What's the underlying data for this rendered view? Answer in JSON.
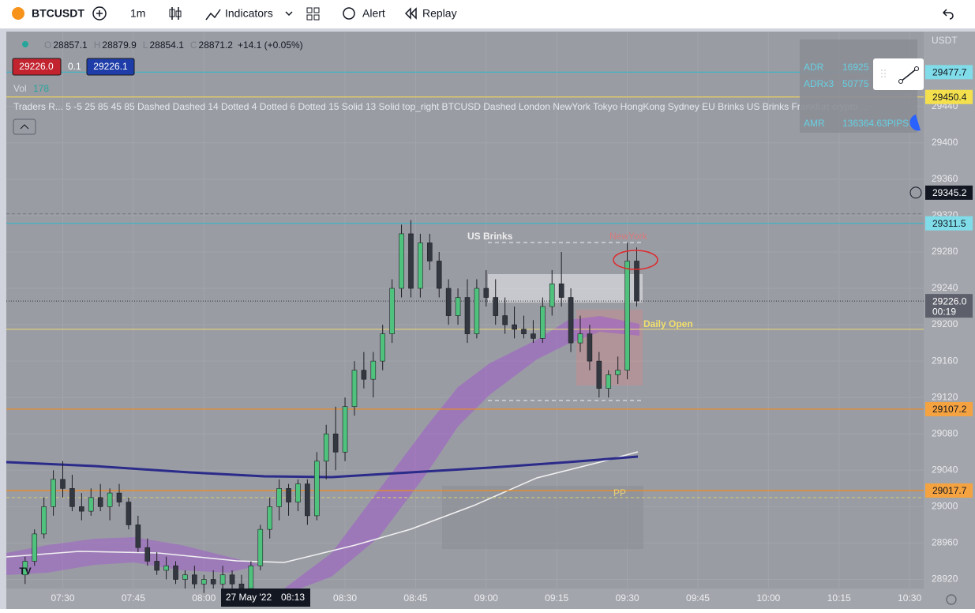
{
  "toolbar": {
    "symbol": "BTCUSDT",
    "interval": "1m",
    "indicators": "Indicators",
    "alert": "Alert",
    "replay": "Replay"
  },
  "legend": {
    "ohlc": [
      {
        "key": "O",
        "value": 28857.1
      },
      {
        "key": "H",
        "value": 28879.9
      },
      {
        "key": "L",
        "value": 28854.1
      },
      {
        "key": "C",
        "value": 28871.2
      }
    ],
    "change": "+14.1 (+0.05%)",
    "sell": "29226.0",
    "spread": "0.1",
    "buy": "29226.1",
    "vol_label": "Vol",
    "vol_value": 178,
    "indicator": "Traders R... 5 -5 25 85 45 85 Dashed Dashed 14 Dotted 4 Dotted 6 Dotted 15 Solid 13 Solid top_right BTCUSD Dashed London NewYork Tokyo HongKong Sydney EU Brinks US Brinks Frankfurt crypto ..."
  },
  "stats_table": {
    "rows": [
      [
        "ADR",
        "16925"
      ],
      [
        "ADRx3",
        "50775"
      ],
      [
        "AMR",
        "136364.63PIPS"
      ]
    ]
  },
  "annotations": {
    "us_brinks": "US Brinks",
    "newyork": "NewYork",
    "daily_open": "Daily Open",
    "pp": "PP"
  },
  "chart": {
    "currency": "USDT",
    "ylim": [
      28910,
      29524
    ],
    "xlim": [
      "07:18",
      "10:33"
    ],
    "yticks": [
      28920,
      28960,
      29000,
      29040,
      29080,
      29120,
      29160,
      29200,
      29240,
      29280,
      29320,
      29360,
      29400,
      29440
    ],
    "xticks": [
      "07:30",
      "07:45",
      "08:00",
      "08:30",
      "08:45",
      "09:00",
      "09:15",
      "09:30",
      "09:45",
      "10:00",
      "10:15",
      "10:30"
    ],
    "crosshair": {
      "date": "27 May '22",
      "time": "08:13"
    },
    "price_labels": [
      {
        "value": 29477.7,
        "bg": "#7fdce8",
        "line": "#37b5c8"
      },
      {
        "value": 29450.4,
        "bg": "#f4e04d",
        "line": "#e8d060"
      },
      {
        "value": 29345.2,
        "bg": "#131722",
        "fg": "#ffffff"
      },
      {
        "value": 29311.5,
        "bg": "#7fdce8",
        "line": "#37b5c8"
      },
      {
        "value": 29226,
        "label": "29226.0",
        "bg": "#5d606b",
        "fg": "#ffffff",
        "timer": "00:19"
      },
      {
        "value": 29107.2,
        "bg": "#f5a340",
        "line": "#f08a1c"
      },
      {
        "value": 29017.7,
        "bg": "#f5a340",
        "line": "#f08a1c"
      }
    ],
    "lines": [
      {
        "value": 29195,
        "color": "#e6d27a"
      },
      {
        "value": 29322,
        "color": "#7b7e87"
      },
      {
        "value": 29010,
        "color": "#c8c27a"
      }
    ],
    "up_color": "#4fc27d",
    "down_color": "#333740",
    "candles": [
      [
        "07:22",
        28925,
        28945,
        28915,
        28940
      ],
      [
        "07:24",
        28940,
        28975,
        28935,
        28970
      ],
      [
        "07:26",
        28970,
        29010,
        28965,
        29000
      ],
      [
        "07:28",
        29000,
        29040,
        28990,
        29030
      ],
      [
        "07:30",
        29030,
        29050,
        29010,
        29020
      ],
      [
        "07:32",
        29020,
        29035,
        28995,
        29000
      ],
      [
        "07:34",
        29000,
        29015,
        28985,
        28995
      ],
      [
        "07:36",
        28995,
        29020,
        28990,
        29010
      ],
      [
        "07:38",
        29010,
        29025,
        28995,
        29000
      ],
      [
        "07:40",
        29000,
        29020,
        28985,
        29015
      ],
      [
        "07:42",
        29015,
        29025,
        29000,
        29005
      ],
      [
        "07:44",
        29005,
        29010,
        28975,
        28980
      ],
      [
        "07:46",
        28980,
        28990,
        28950,
        28955
      ],
      [
        "07:48",
        28955,
        28965,
        28935,
        28940
      ],
      [
        "07:50",
        28940,
        28950,
        28925,
        28930
      ],
      [
        "07:52",
        28930,
        28945,
        28920,
        28935
      ],
      [
        "07:54",
        28935,
        28940,
        28915,
        28920
      ],
      [
        "07:56",
        28920,
        28930,
        28910,
        28925
      ],
      [
        "07:58",
        28925,
        28935,
        28910,
        28915
      ],
      [
        "08:00",
        28915,
        28925,
        28905,
        28920
      ],
      [
        "08:02",
        28920,
        28930,
        28910,
        28915
      ],
      [
        "08:04",
        28915,
        28935,
        28905,
        28925
      ],
      [
        "08:06",
        28925,
        28930,
        28910,
        28915
      ],
      [
        "08:08",
        28915,
        28925,
        28905,
        28910
      ],
      [
        "08:10",
        28910,
        28940,
        28905,
        28935
      ],
      [
        "08:12",
        28935,
        28980,
        28930,
        28975
      ],
      [
        "08:14",
        28975,
        29010,
        28965,
        29000
      ],
      [
        "08:16",
        29000,
        29030,
        28985,
        29020
      ],
      [
        "08:18",
        29020,
        29025,
        28990,
        29005
      ],
      [
        "08:20",
        29005,
        29030,
        28995,
        29025
      ],
      [
        "08:22",
        29025,
        29030,
        28980,
        28990
      ],
      [
        "08:24",
        28990,
        29060,
        28985,
        29050
      ],
      [
        "08:26",
        29050,
        29090,
        29030,
        29080
      ],
      [
        "08:28",
        29080,
        29110,
        29040,
        29060
      ],
      [
        "08:30",
        29060,
        29120,
        29050,
        29110
      ],
      [
        "08:32",
        29110,
        29160,
        29100,
        29150
      ],
      [
        "08:34",
        29150,
        29170,
        29130,
        29140
      ],
      [
        "08:36",
        29140,
        29170,
        29120,
        29160
      ],
      [
        "08:38",
        29160,
        29200,
        29150,
        29190
      ],
      [
        "08:40",
        29190,
        29250,
        29180,
        29240
      ],
      [
        "08:42",
        29240,
        29310,
        29230,
        29300
      ],
      [
        "08:44",
        29300,
        29315,
        29230,
        29240
      ],
      [
        "08:46",
        29240,
        29300,
        29230,
        29290
      ],
      [
        "08:48",
        29290,
        29300,
        29260,
        29270
      ],
      [
        "08:50",
        29270,
        29280,
        29230,
        29240
      ],
      [
        "08:52",
        29240,
        29250,
        29200,
        29210
      ],
      [
        "08:54",
        29210,
        29240,
        29200,
        29230
      ],
      [
        "08:56",
        29230,
        29250,
        29180,
        29190
      ],
      [
        "08:58",
        29190,
        29250,
        29185,
        29240
      ],
      [
        "09:00",
        29240,
        29260,
        29220,
        29230
      ],
      [
        "09:02",
        29230,
        29250,
        29200,
        29210
      ],
      [
        "09:04",
        29210,
        29230,
        29190,
        29200
      ],
      [
        "09:06",
        29200,
        29220,
        29185,
        29195
      ],
      [
        "09:08",
        29195,
        29210,
        29185,
        29190
      ],
      [
        "09:10",
        29190,
        29205,
        29180,
        29185
      ],
      [
        "09:12",
        29185,
        29230,
        29180,
        29220
      ],
      [
        "09:14",
        29220,
        29260,
        29210,
        29245
      ],
      [
        "09:16",
        29245,
        29280,
        29220,
        29230
      ],
      [
        "09:18",
        29230,
        29240,
        29170,
        29180
      ],
      [
        "09:20",
        29180,
        29210,
        29170,
        29190
      ],
      [
        "09:22",
        29190,
        29200,
        29150,
        29160
      ],
      [
        "09:24",
        29160,
        29170,
        29120,
        29130
      ],
      [
        "09:26",
        29130,
        29150,
        29120,
        29145
      ],
      [
        "09:28",
        29145,
        29165,
        29135,
        29150
      ],
      [
        "09:30",
        29150,
        29290,
        29140,
        29270
      ],
      [
        "09:32",
        29270,
        29285,
        29220,
        29226
      ]
    ]
  }
}
